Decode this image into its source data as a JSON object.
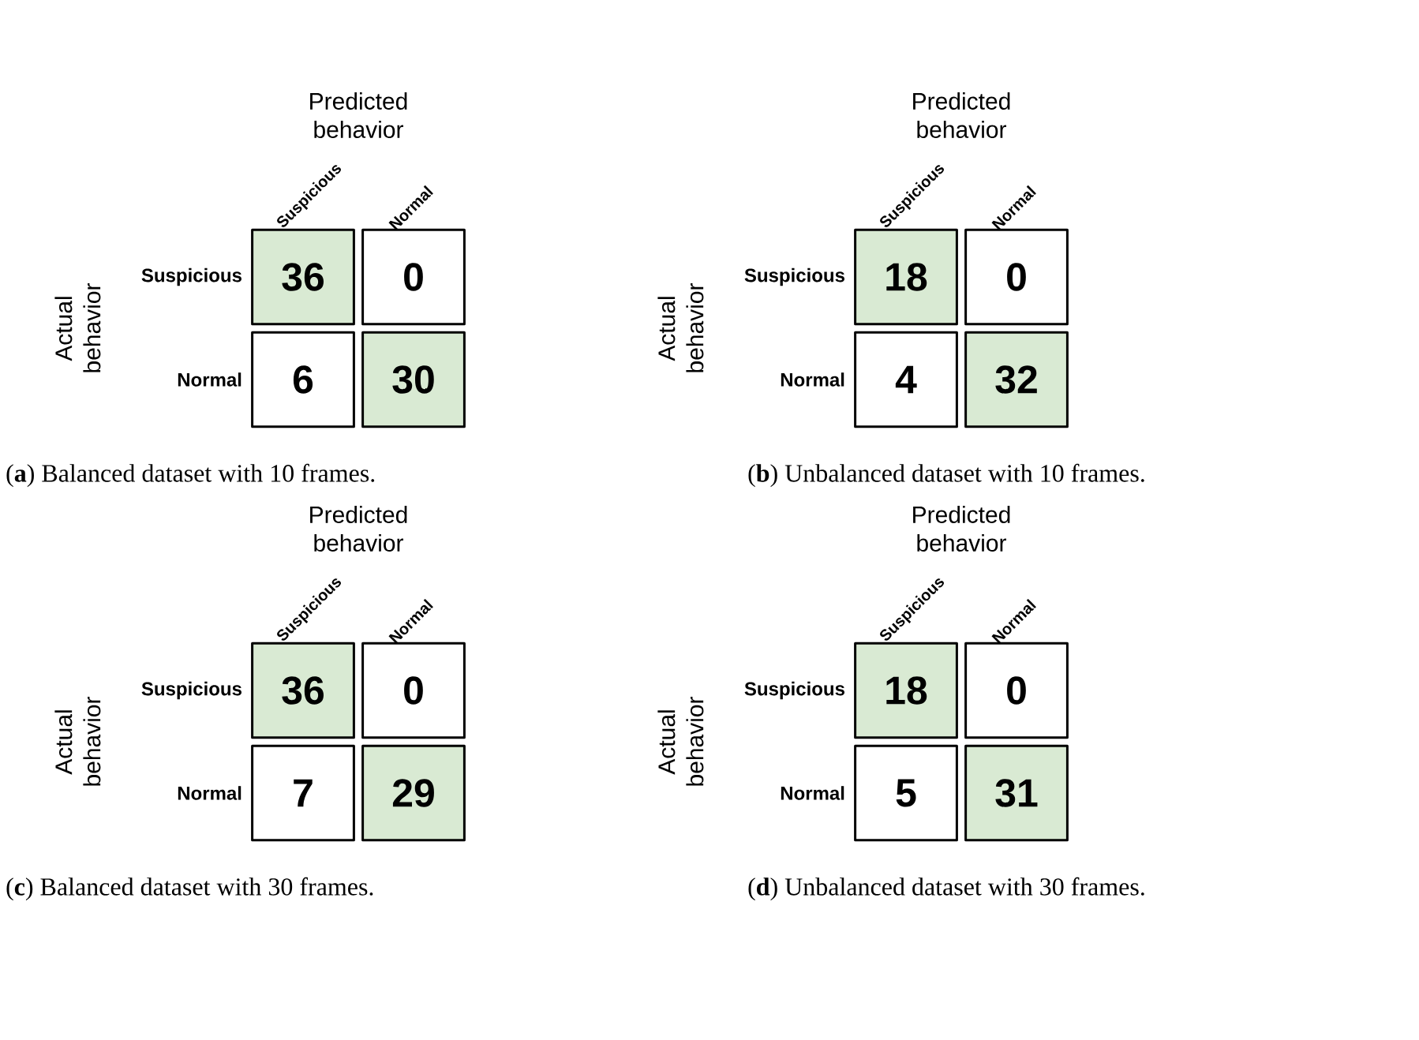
{
  "chart_data": [
    {
      "type": "heatmap",
      "title": "(**a**) Balanced dataset with 10 frames.",
      "xlabel": "Predicted behavior",
      "ylabel": "Actual behavior",
      "categories": [
        "Suspicious",
        "Normal"
      ],
      "y_categories": [
        "Suspicious",
        "Normal"
      ],
      "cells": [
        [
          36,
          0
        ],
        [
          6,
          30
        ]
      ],
      "colors": [
        [
          "#d9ead3",
          "#ffffff"
        ],
        [
          "#ffffff",
          "#d9ead3"
        ]
      ],
      "data_labels": true
    },
    {
      "type": "heatmap",
      "title": "(**b**) Unbalanced dataset with 10 frames.",
      "xlabel": "Predicted behavior",
      "ylabel": "Actual behavior",
      "categories": [
        "Suspicious",
        "Normal"
      ],
      "y_categories": [
        "Suspicious",
        "Normal"
      ],
      "cells": [
        [
          18,
          0
        ],
        [
          4,
          32
        ]
      ],
      "colors": [
        [
          "#d9ead3",
          "#ffffff"
        ],
        [
          "#ffffff",
          "#d9ead3"
        ]
      ],
      "data_labels": true
    },
    {
      "type": "heatmap",
      "title": "(**c**) Balanced dataset with 30 frames.",
      "xlabel": "Predicted behavior",
      "ylabel": "Actual behavior",
      "categories": [
        "Suspicious",
        "Normal"
      ],
      "y_categories": [
        "Suspicious",
        "Normal"
      ],
      "cells": [
        [
          36,
          0
        ],
        [
          7,
          29
        ]
      ],
      "colors": [
        [
          "#d9ead3",
          "#ffffff"
        ],
        [
          "#ffffff",
          "#d9ead3"
        ]
      ],
      "data_labels": true
    },
    {
      "type": "heatmap",
      "title": "(**d**) Unbalanced dataset with 30 frames.",
      "xlabel": "Predicted behavior",
      "ylabel": "Actual behavior",
      "categories": [
        "Suspicious",
        "Normal"
      ],
      "y_categories": [
        "Suspicious",
        "Normal"
      ],
      "cells": [
        [
          18,
          0
        ],
        [
          5,
          31
        ]
      ],
      "colors": [
        [
          "#d9ead3",
          "#ffffff"
        ],
        [
          "#ffffff",
          "#d9ead3"
        ]
      ],
      "data_labels": true
    }
  ]
}
